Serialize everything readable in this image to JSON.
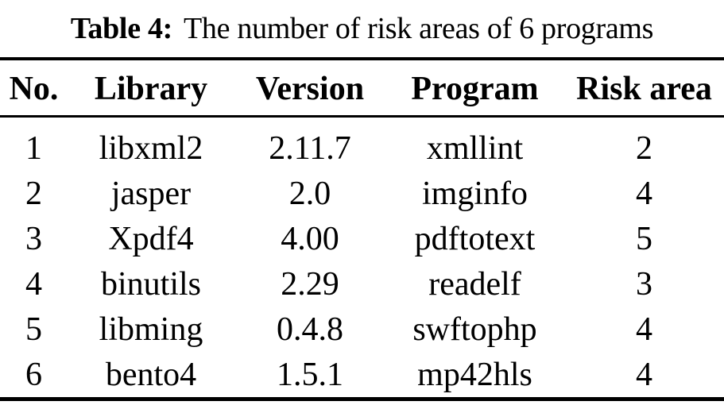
{
  "caption": {
    "label": "Table 4:",
    "text": "The number of risk areas of 6 programs"
  },
  "table": {
    "columns": [
      "No.",
      "Library",
      "Version",
      "Program",
      "Risk area"
    ],
    "rows": [
      {
        "no": "1",
        "library": "libxml2",
        "version": "2.11.7",
        "program": "xmllint",
        "risk_area": "2"
      },
      {
        "no": "2",
        "library": "jasper",
        "version": "2.0",
        "program": "imginfo",
        "risk_area": "4"
      },
      {
        "no": "3",
        "library": "Xpdf4",
        "version": "4.00",
        "program": "pdftotext",
        "risk_area": "5"
      },
      {
        "no": "4",
        "library": "binutils",
        "version": "2.29",
        "program": "readelf",
        "risk_area": "3"
      },
      {
        "no": "5",
        "library": "libming",
        "version": "0.4.8",
        "program": "swftophp",
        "risk_area": "4"
      },
      {
        "no": "6",
        "library": "bento4",
        "version": "1.5.1",
        "program": "mp42hls",
        "risk_area": "4"
      }
    ]
  },
  "colors": {
    "text": "#000000",
    "background": "#ffffff",
    "rule": "#000000"
  }
}
